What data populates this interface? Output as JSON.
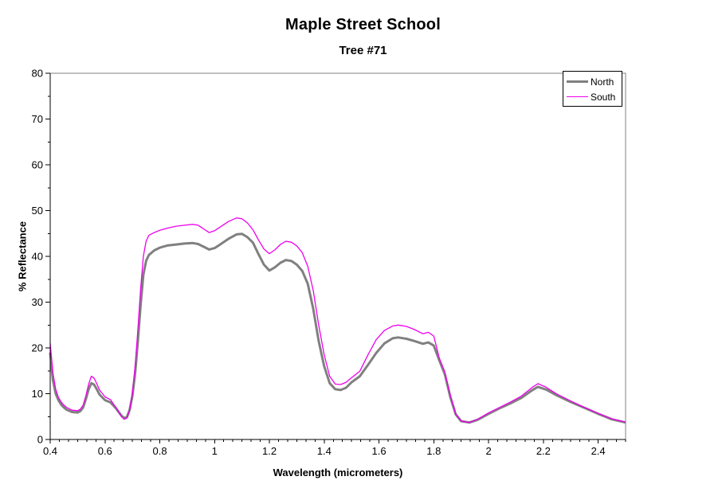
{
  "chart_data": {
    "type": "line",
    "title": "Maple Street School",
    "subtitle": "Tree #71",
    "xlabel": "Wavelength (micrometers)",
    "ylabel": "% Reflectance",
    "xlim": [
      0.4,
      2.5
    ],
    "ylim": [
      0,
      80
    ],
    "grid": false,
    "legend_position": "top-right",
    "x_ticks": [
      0.4,
      0.6,
      0.8,
      1,
      1.2,
      1.4,
      1.6,
      1.8,
      2,
      2.2,
      2.4
    ],
    "x_tick_labels": [
      "0.4",
      "0.6",
      "0.8",
      "1",
      "1.2",
      "1.4",
      "1.6",
      "1.8",
      "2",
      "2.2",
      "2.4"
    ],
    "x_minor_step": 0.0333333,
    "y_ticks": [
      0,
      10,
      20,
      30,
      40,
      50,
      60,
      70,
      80
    ],
    "y_tick_labels": [
      "0",
      "10",
      "20",
      "30",
      "40",
      "50",
      "60",
      "70",
      "80"
    ],
    "y_minor_step": 5,
    "colors": {
      "axis": "#000000",
      "plot_border": "#808080",
      "background": "#ffffff"
    },
    "x": [
      0.4,
      0.41,
      0.42,
      0.43,
      0.44,
      0.45,
      0.46,
      0.48,
      0.5,
      0.51,
      0.52,
      0.53,
      0.54,
      0.55,
      0.56,
      0.57,
      0.58,
      0.6,
      0.62,
      0.64,
      0.66,
      0.67,
      0.68,
      0.69,
      0.7,
      0.71,
      0.72,
      0.73,
      0.74,
      0.75,
      0.76,
      0.78,
      0.8,
      0.83,
      0.86,
      0.89,
      0.92,
      0.94,
      0.96,
      0.98,
      1.0,
      1.02,
      1.05,
      1.08,
      1.1,
      1.12,
      1.14,
      1.16,
      1.18,
      1.2,
      1.22,
      1.24,
      1.26,
      1.28,
      1.3,
      1.32,
      1.34,
      1.36,
      1.38,
      1.4,
      1.42,
      1.44,
      1.46,
      1.48,
      1.5,
      1.53,
      1.56,
      1.59,
      1.62,
      1.65,
      1.67,
      1.7,
      1.73,
      1.76,
      1.78,
      1.8,
      1.82,
      1.84,
      1.86,
      1.88,
      1.9,
      1.93,
      1.96,
      2.0,
      2.04,
      2.08,
      2.12,
      2.16,
      2.18,
      2.21,
      2.25,
      2.3,
      2.35,
      2.4,
      2.45,
      2.5
    ],
    "series": [
      {
        "name": "North",
        "color": "#808080",
        "line_width": 3,
        "values": [
          19.0,
          13.0,
          10.0,
          8.6,
          7.6,
          7.0,
          6.5,
          6.0,
          5.9,
          6.2,
          7.0,
          8.8,
          10.9,
          12.3,
          12.0,
          11.0,
          9.8,
          8.6,
          8.1,
          6.8,
          5.2,
          4.7,
          4.9,
          6.5,
          9.5,
          14.5,
          21.5,
          29.5,
          36.0,
          39.0,
          40.3,
          41.3,
          41.9,
          42.4,
          42.6,
          42.8,
          42.9,
          42.7,
          42.1,
          41.5,
          41.8,
          42.6,
          43.8,
          44.8,
          44.9,
          44.2,
          43.0,
          40.5,
          38.2,
          36.9,
          37.6,
          38.6,
          39.2,
          39.0,
          38.2,
          36.8,
          34.0,
          28.5,
          21.5,
          16.0,
          12.3,
          11.0,
          10.8,
          11.3,
          12.5,
          13.8,
          16.3,
          18.9,
          21.0,
          22.1,
          22.3,
          22.0,
          21.5,
          20.9,
          21.2,
          20.5,
          17.3,
          14.3,
          9.3,
          5.5,
          4.0,
          3.7,
          4.3,
          5.6,
          6.8,
          7.9,
          9.1,
          10.8,
          11.5,
          10.9,
          9.6,
          8.2,
          6.9,
          5.6,
          4.4,
          3.7
        ]
      },
      {
        "name": "South",
        "color": "#EE00EE",
        "line_width": 1.3,
        "values": [
          21.0,
          14.5,
          11.0,
          9.2,
          8.2,
          7.5,
          7.0,
          6.4,
          6.3,
          6.6,
          7.5,
          9.5,
          12.0,
          13.8,
          13.4,
          12.2,
          10.8,
          9.3,
          8.7,
          7.0,
          5.0,
          4.4,
          4.7,
          6.4,
          10.0,
          16.0,
          24.0,
          33.0,
          40.0,
          43.3,
          44.6,
          45.2,
          45.7,
          46.2,
          46.6,
          46.8,
          47.0,
          46.8,
          46.0,
          45.2,
          45.6,
          46.4,
          47.6,
          48.4,
          48.2,
          47.3,
          45.8,
          43.6,
          41.6,
          40.6,
          41.4,
          42.6,
          43.3,
          43.1,
          42.3,
          40.8,
          37.8,
          32.5,
          25.0,
          18.5,
          13.8,
          12.1,
          12.0,
          12.5,
          13.5,
          14.9,
          18.5,
          21.8,
          23.8,
          24.8,
          25.0,
          24.7,
          24.0,
          23.1,
          23.4,
          22.6,
          17.8,
          14.8,
          9.7,
          5.6,
          4.0,
          3.7,
          4.4,
          5.8,
          7.0,
          8.2,
          9.5,
          11.4,
          12.2,
          11.4,
          9.9,
          8.4,
          7.0,
          5.7,
          4.5,
          3.8
        ]
      }
    ]
  }
}
